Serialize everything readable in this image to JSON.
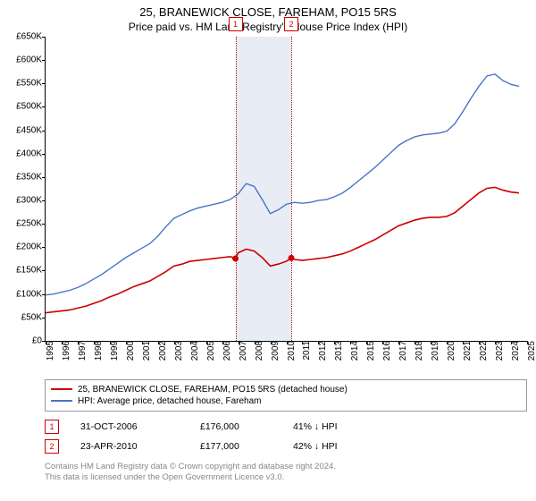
{
  "title": "25, BRANEWICK CLOSE, FAREHAM, PO15 5RS",
  "subtitle": "Price paid vs. HM Land Registry's House Price Index (HPI)",
  "chart": {
    "type": "line",
    "background_color": "#ffffff",
    "x": {
      "min": 1995,
      "max": 2025,
      "step": 1
    },
    "y": {
      "min": 0,
      "max": 650,
      "step": 50,
      "prefix": "£",
      "suffix": "K"
    },
    "shade_band": {
      "from": 2006.83,
      "to": 2010.31,
      "color": "#e8ecf4"
    },
    "series": [
      {
        "name": "property",
        "label": "25, BRANEWICK CLOSE, FAREHAM, PO15 5RS (detached house)",
        "color": "#cc0000",
        "width": 1.6,
        "points": [
          [
            1995,
            60
          ],
          [
            1995.5,
            62
          ],
          [
            1996,
            64
          ],
          [
            1996.5,
            66
          ],
          [
            1997,
            70
          ],
          [
            1997.5,
            74
          ],
          [
            1998,
            80
          ],
          [
            1998.5,
            86
          ],
          [
            1999,
            94
          ],
          [
            1999.5,
            100
          ],
          [
            2000,
            108
          ],
          [
            2000.5,
            116
          ],
          [
            2001,
            122
          ],
          [
            2001.5,
            128
          ],
          [
            2002,
            138
          ],
          [
            2002.5,
            148
          ],
          [
            2003,
            160
          ],
          [
            2003.5,
            164
          ],
          [
            2004,
            170
          ],
          [
            2004.5,
            172
          ],
          [
            2005,
            174
          ],
          [
            2005.5,
            176
          ],
          [
            2006,
            178
          ],
          [
            2006.5,
            180
          ],
          [
            2006.83,
            176
          ],
          [
            2007,
            188
          ],
          [
            2007.5,
            196
          ],
          [
            2008,
            192
          ],
          [
            2008.5,
            178
          ],
          [
            2009,
            160
          ],
          [
            2009.5,
            164
          ],
          [
            2010,
            170
          ],
          [
            2010.31,
            177
          ],
          [
            2010.5,
            174
          ],
          [
            2011,
            172
          ],
          [
            2011.5,
            174
          ],
          [
            2012,
            176
          ],
          [
            2012.5,
            178
          ],
          [
            2013,
            182
          ],
          [
            2013.5,
            186
          ],
          [
            2014,
            192
          ],
          [
            2014.5,
            200
          ],
          [
            2015,
            208
          ],
          [
            2015.5,
            216
          ],
          [
            2016,
            226
          ],
          [
            2016.5,
            236
          ],
          [
            2017,
            246
          ],
          [
            2017.5,
            252
          ],
          [
            2018,
            258
          ],
          [
            2018.5,
            262
          ],
          [
            2019,
            264
          ],
          [
            2019.5,
            264
          ],
          [
            2020,
            266
          ],
          [
            2020.5,
            274
          ],
          [
            2021,
            288
          ],
          [
            2021.5,
            302
          ],
          [
            2022,
            316
          ],
          [
            2022.5,
            326
          ],
          [
            2023,
            328
          ],
          [
            2023.5,
            322
          ],
          [
            2024,
            318
          ],
          [
            2024.5,
            316
          ]
        ]
      },
      {
        "name": "hpi",
        "label": "HPI: Average price, detached house, Fareham",
        "color": "#4a74c9",
        "width": 1.4,
        "points": [
          [
            1995,
            98
          ],
          [
            1995.5,
            100
          ],
          [
            1996,
            104
          ],
          [
            1996.5,
            108
          ],
          [
            1997,
            114
          ],
          [
            1997.5,
            122
          ],
          [
            1998,
            132
          ],
          [
            1998.5,
            142
          ],
          [
            1999,
            154
          ],
          [
            1999.5,
            166
          ],
          [
            2000,
            178
          ],
          [
            2000.5,
            188
          ],
          [
            2001,
            198
          ],
          [
            2001.5,
            208
          ],
          [
            2002,
            224
          ],
          [
            2002.5,
            244
          ],
          [
            2003,
            262
          ],
          [
            2003.5,
            270
          ],
          [
            2004,
            278
          ],
          [
            2004.5,
            284
          ],
          [
            2005,
            288
          ],
          [
            2005.5,
            292
          ],
          [
            2006,
            296
          ],
          [
            2006.5,
            302
          ],
          [
            2007,
            314
          ],
          [
            2007.5,
            336
          ],
          [
            2008,
            330
          ],
          [
            2008.5,
            302
          ],
          [
            2009,
            272
          ],
          [
            2009.5,
            280
          ],
          [
            2010,
            292
          ],
          [
            2010.5,
            296
          ],
          [
            2011,
            294
          ],
          [
            2011.5,
            296
          ],
          [
            2012,
            300
          ],
          [
            2012.5,
            302
          ],
          [
            2013,
            308
          ],
          [
            2013.5,
            316
          ],
          [
            2014,
            328
          ],
          [
            2014.5,
            342
          ],
          [
            2015,
            356
          ],
          [
            2015.5,
            370
          ],
          [
            2016,
            386
          ],
          [
            2016.5,
            402
          ],
          [
            2017,
            418
          ],
          [
            2017.5,
            428
          ],
          [
            2018,
            436
          ],
          [
            2018.5,
            440
          ],
          [
            2019,
            442
          ],
          [
            2019.5,
            444
          ],
          [
            2020,
            448
          ],
          [
            2020.5,
            464
          ],
          [
            2021,
            490
          ],
          [
            2021.5,
            518
          ],
          [
            2022,
            544
          ],
          [
            2022.5,
            566
          ],
          [
            2023,
            570
          ],
          [
            2023.5,
            556
          ],
          [
            2024,
            548
          ],
          [
            2024.5,
            544
          ]
        ]
      }
    ],
    "event_lines": [
      {
        "id": "1",
        "x": 2006.83,
        "color": "#cc0000"
      },
      {
        "id": "2",
        "x": 2010.31,
        "color": "#cc0000"
      }
    ],
    "sale_markers": [
      {
        "x": 2006.83,
        "y": 176,
        "color": "#cc0000"
      },
      {
        "x": 2010.31,
        "y": 177,
        "color": "#cc0000"
      }
    ]
  },
  "legend": [
    {
      "color": "#cc0000",
      "label": "25, BRANEWICK CLOSE, FAREHAM, PO15 5RS (detached house)"
    },
    {
      "color": "#4a74c9",
      "label": "HPI: Average price, detached house, Fareham"
    }
  ],
  "events": [
    {
      "id": "1",
      "color": "#cc0000",
      "date": "31-OCT-2006",
      "price": "£176,000",
      "delta": "41% ↓ HPI"
    },
    {
      "id": "2",
      "color": "#cc0000",
      "date": "23-APR-2010",
      "price": "£177,000",
      "delta": "42% ↓ HPI"
    }
  ],
  "attribution": {
    "line1": "Contains HM Land Registry data © Crown copyright and database right 2024.",
    "line2": "This data is licensed under the Open Government Licence v3.0."
  }
}
